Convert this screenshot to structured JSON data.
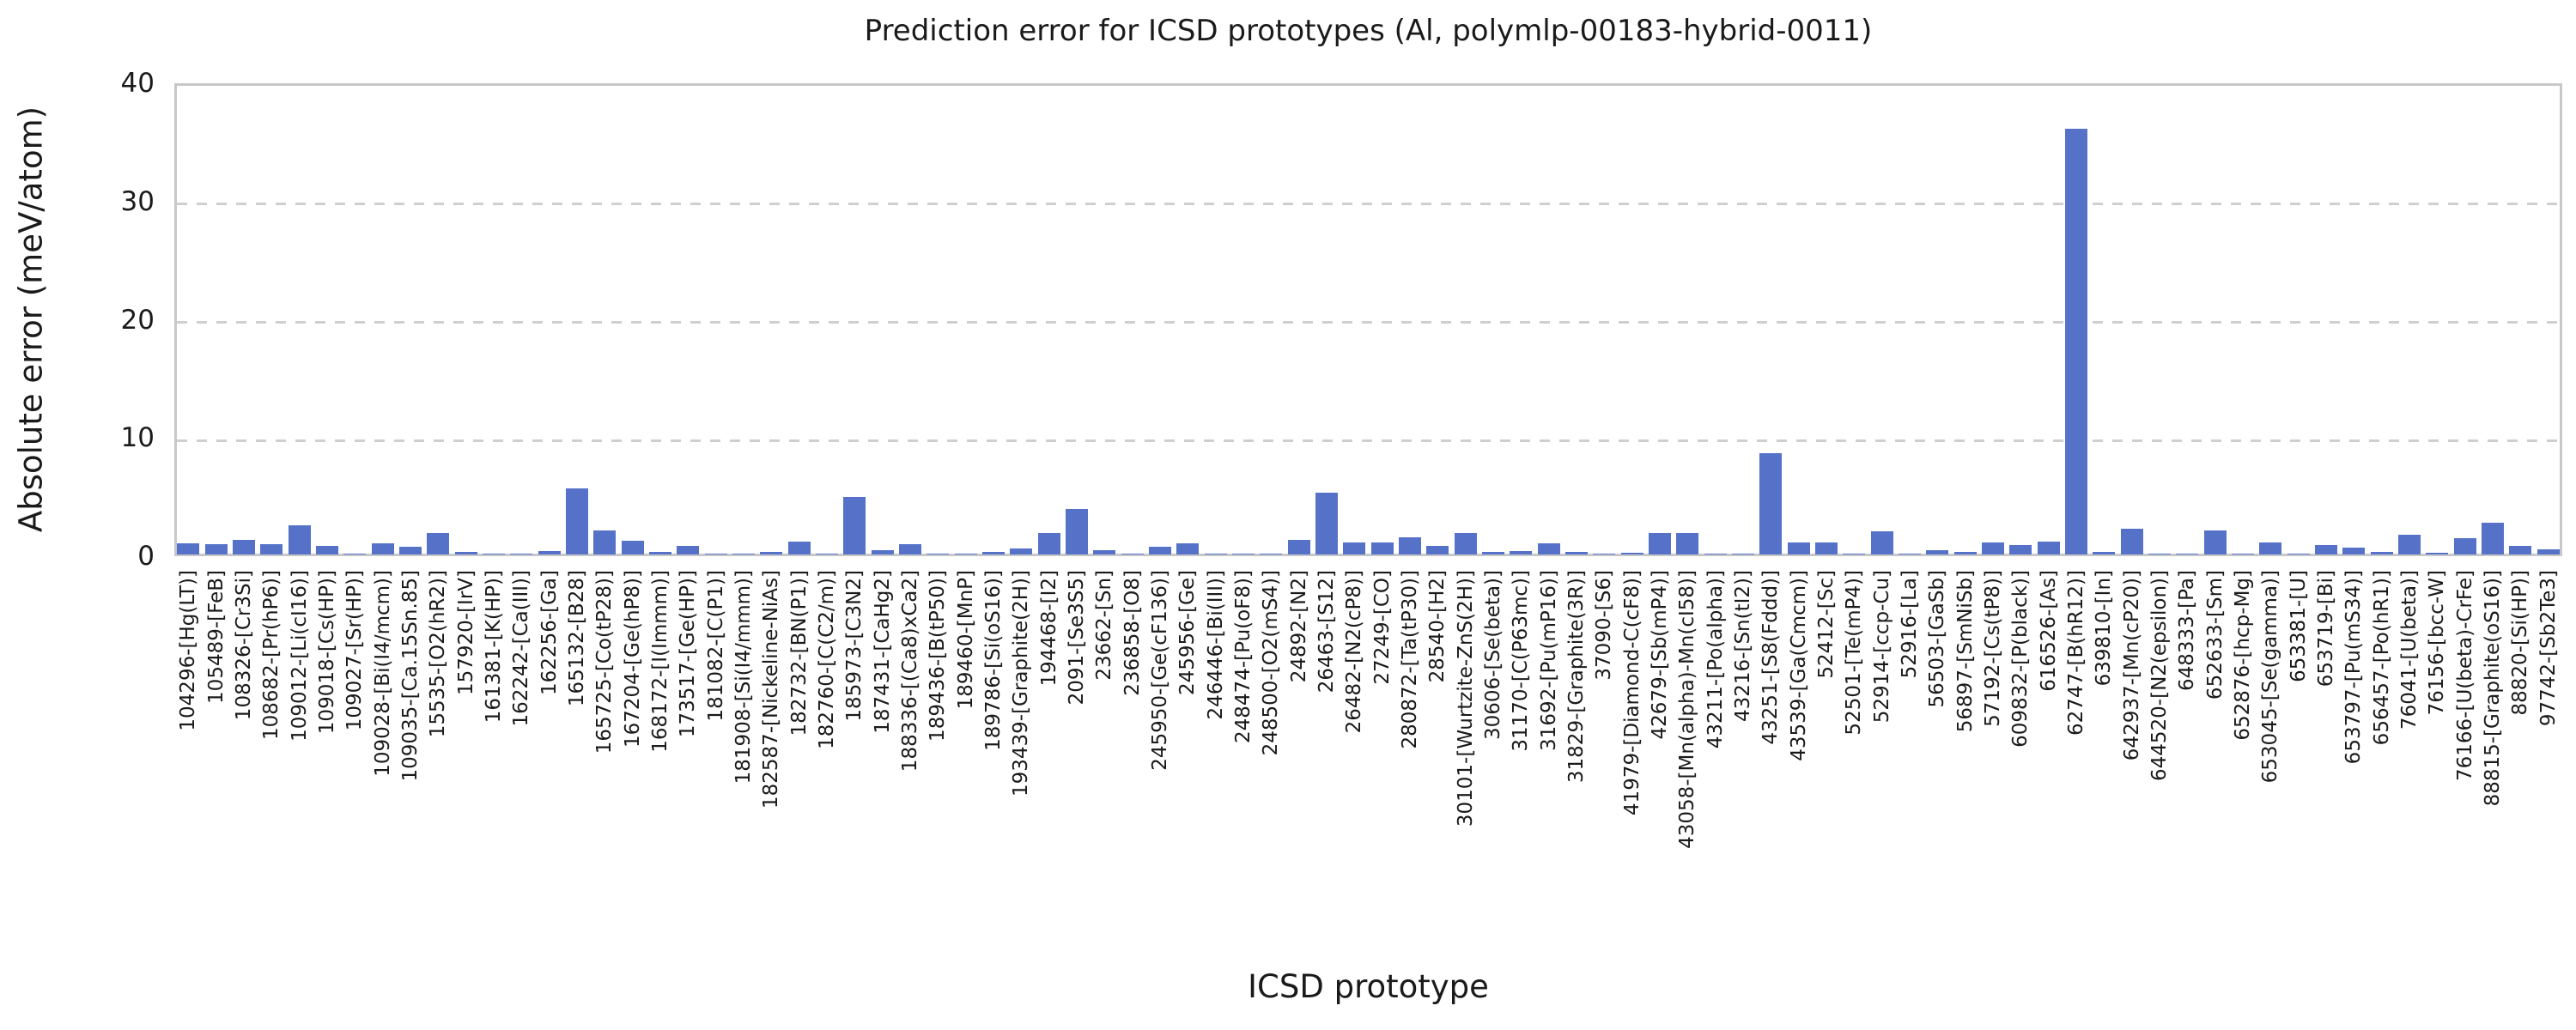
{
  "chart_data": {
    "type": "bar",
    "title": "Prediction error for ICSD prototypes (Al, polymlp-00183-hybrid-0011)",
    "xlabel": "ICSD prototype",
    "ylabel": "Absolute error (meV/atom)",
    "ylim": [
      0,
      40
    ],
    "yticks": [
      0,
      10,
      20,
      30,
      40
    ],
    "grid": "dashed horizontal gridlines at yticks",
    "legend_position": "none",
    "categories": [
      "104296-[Hg(LT)]",
      "105489-[FeB]",
      "108326-[Cr3Si]",
      "108682-[Pr(hP6)]",
      "109012-[Li(cI16)]",
      "109018-[Cs(HP)]",
      "109027-[Sr(HP)]",
      "109028-[Bi(I4/mcm)]",
      "109035-[Ca.15Sn.85]",
      "15535-[O2(hR2)]",
      "157920-[IrV]",
      "161381-[K(HP)]",
      "162242-[Ca(III)]",
      "162256-[Ga]",
      "165132-[B28]",
      "165725-[Co(tP28)]",
      "167204-[Ge(hP8)]",
      "168172-[I(Immm)]",
      "173517-[Ge(HP)]",
      "181082-[C(P1)]",
      "181908-[Si(I4/mmm)]",
      "182587-[Nickeline-NiAs]",
      "182732-[BN(P1)]",
      "182760-[C(C2/m)]",
      "185973-[C3N2]",
      "187431-[CaHg2]",
      "188336-[(Ca8)xCa2]",
      "189436-[B(tP50)]",
      "189460-[MnP]",
      "189786-[Si(oS16)]",
      "193439-[Graphite(2H)]",
      "194468-[I2]",
      "2091-[Se3S5]",
      "23662-[Sn]",
      "236858-[O8]",
      "245950-[Ge(cF136)]",
      "245956-[Ge]",
      "246446-[Bi(III)]",
      "248474-[Pu(oF8)]",
      "248500-[O2(mS4)]",
      "24892-[N2]",
      "26463-[S12]",
      "26482-[N2(cP8)]",
      "27249-[CO]",
      "280872-[Ta(tP30)]",
      "28540-[H2]",
      "30101-[Wurtzite-ZnS(2H)]",
      "30606-[Se(beta)]",
      "31170-[C(P63mc)]",
      "31692-[Pu(mP16)]",
      "31829-[Graphite(3R)]",
      "37090-[S6]",
      "41979-[Diamond-C(cF8)]",
      "42679-[Sb(mP4)]",
      "43058-[Mn(alpha)-Mn(cI58)]",
      "43211-[Po(alpha)]",
      "43216-[Sn(tI2)]",
      "43251-[S8(Fddd)]",
      "43539-[Ga(Cmcm)]",
      "52412-[Sc]",
      "52501-[Te(mP4)]",
      "52914-[ccp-Cu]",
      "52916-[La]",
      "56503-[GaSb]",
      "56897-[SmNiSb]",
      "57192-[Cs(tP8)]",
      "609832-[P(black)]",
      "616526-[As]",
      "62747-[B(hR12)]",
      "639810-[In]",
      "642937-[Mn(cP20)]",
      "644520-[N2(epsilon)]",
      "648333-[Pa]",
      "652633-[Sm]",
      "652876-[hcp-Mg]",
      "653045-[Se(gamma)]",
      "653381-[U]",
      "653719-[Bi]",
      "653797-[Pu(mS34)]",
      "656457-[Po(hR1)]",
      "76041-[U(beta)]",
      "76156-[bcc-W]",
      "76166-[U(beta)-CrFe]",
      "88815-[Graphite(oS16)]",
      "88820-[Si(HP)]",
      "97742-[Sb2Te3]"
    ],
    "values": [
      0.95,
      0.9,
      1.25,
      0.85,
      2.5,
      0.75,
      0.05,
      0.95,
      0.65,
      1.85,
      0.2,
      0.05,
      0.05,
      0.3,
      5.6,
      2.0,
      1.15,
      0.25,
      0.7,
      0.05,
      0.1,
      0.25,
      1.1,
      0.05,
      4.9,
      0.35,
      0.85,
      0.1,
      0.1,
      0.2,
      0.5,
      1.85,
      3.85,
      0.35,
      0.05,
      0.65,
      0.95,
      0.05,
      0.05,
      0.1,
      1.25,
      5.2,
      1.0,
      1.05,
      1.45,
      0.75,
      1.85,
      0.2,
      0.3,
      0.95,
      0.2,
      0.05,
      0.15,
      1.85,
      1.85,
      0.05,
      0.05,
      8.6,
      1.05,
      1.05,
      0.05,
      1.95,
      0.05,
      0.35,
      0.25,
      1.0,
      0.8,
      1.1,
      36.0,
      0.2,
      2.2,
      0.05,
      0.05,
      2.0,
      0.05,
      1.0,
      0.05,
      0.8,
      0.6,
      0.25,
      1.7,
      0.15,
      1.4,
      2.7,
      0.7,
      0.45
    ],
    "colors": {
      "bar": "#5572C8",
      "grid": "#CFCFCF",
      "spine": "#C8C8C8",
      "text": "#1A1A1A"
    }
  }
}
